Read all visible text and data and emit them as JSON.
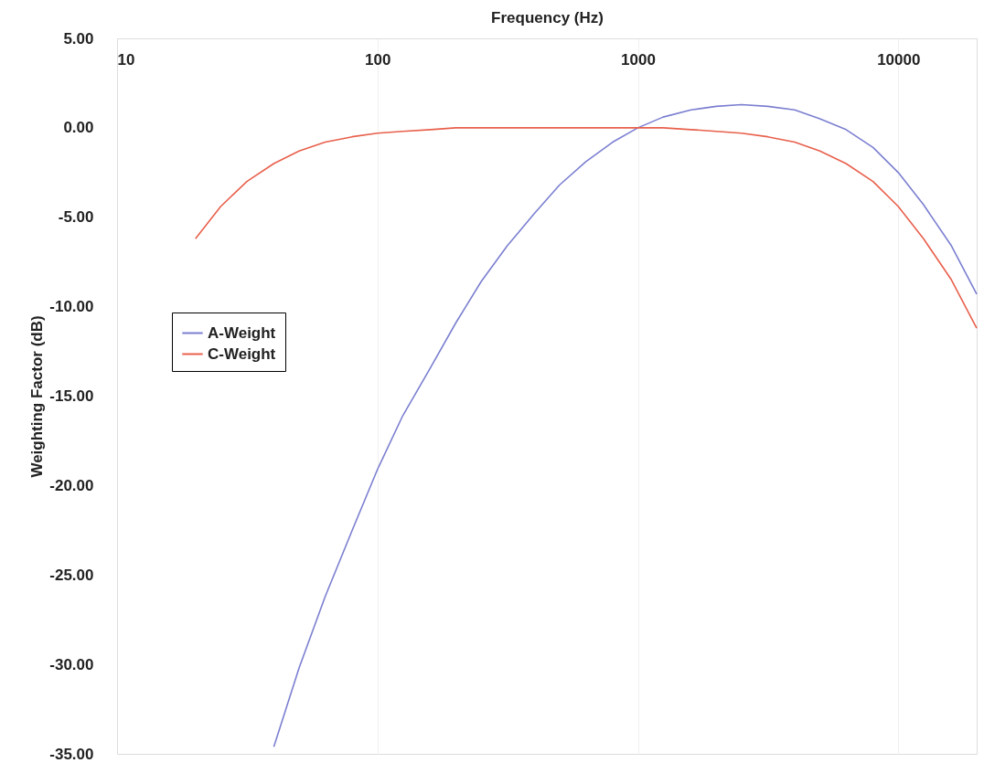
{
  "chart_data": {
    "type": "line",
    "xlabel": "Frequency (Hz)",
    "ylabel": "Weighting Factor (dB)",
    "log": "x",
    "xlim": [
      10,
      20000
    ],
    "xticks": [
      10,
      100,
      1000,
      10000
    ],
    "ylim": [
      -35,
      5
    ],
    "yticks": [
      {
        "value": -35,
        "label": "-35.00"
      },
      {
        "value": -30,
        "label": "-30.00"
      },
      {
        "value": -25,
        "label": "-25.00"
      },
      {
        "value": -20,
        "label": "-20.00"
      },
      {
        "value": -15,
        "label": "-15.00"
      },
      {
        "value": -10,
        "label": "-10.00"
      },
      {
        "value": -5,
        "label": "-5.00"
      },
      {
        "value": 0,
        "label": "0.00"
      },
      {
        "value": 5,
        "label": "5.00"
      }
    ],
    "grid": "x",
    "legend": "left",
    "marker": "none",
    "line_style": "solid",
    "series": [
      {
        "name": "A-Weight",
        "color": "#7b7fd0",
        "x": [
          40,
          50,
          63,
          80,
          100,
          125,
          160,
          200,
          250,
          315,
          400,
          500,
          630,
          800,
          1000,
          1250,
          1600,
          2000,
          2500,
          3150,
          4000,
          5000,
          6300,
          8000,
          10000,
          12500,
          16000,
          20000
        ],
        "values": [
          -34.6,
          -30.2,
          -26.2,
          -22.5,
          -19.1,
          -16.1,
          -13.4,
          -10.9,
          -8.6,
          -6.6,
          -4.8,
          -3.2,
          -1.9,
          -0.8,
          0,
          0.6,
          1.0,
          1.2,
          1.3,
          1.2,
          1.0,
          0.5,
          -0.1,
          -1.1,
          -2.5,
          -4.3,
          -6.6,
          -9.3
        ]
      },
      {
        "name": "C-Weight",
        "color": "#e8604c",
        "x": [
          20,
          25,
          31.5,
          40,
          50,
          63,
          80,
          100,
          125,
          160,
          200,
          250,
          315,
          400,
          500,
          630,
          800,
          1000,
          1250,
          1600,
          2000,
          2500,
          3150,
          4000,
          5000,
          6300,
          8000,
          10000,
          12500,
          16000,
          20000
        ],
        "values": [
          -6.2,
          -4.4,
          -3.0,
          -2.0,
          -1.3,
          -0.8,
          -0.5,
          -0.3,
          -0.2,
          -0.1,
          0,
          0,
          0,
          0,
          0,
          0,
          0,
          0,
          0,
          -0.1,
          -0.2,
          -0.3,
          -0.5,
          -0.8,
          -1.3,
          -2.0,
          -3.0,
          -4.4,
          -6.2,
          -8.5,
          -11.2
        ]
      }
    ]
  }
}
